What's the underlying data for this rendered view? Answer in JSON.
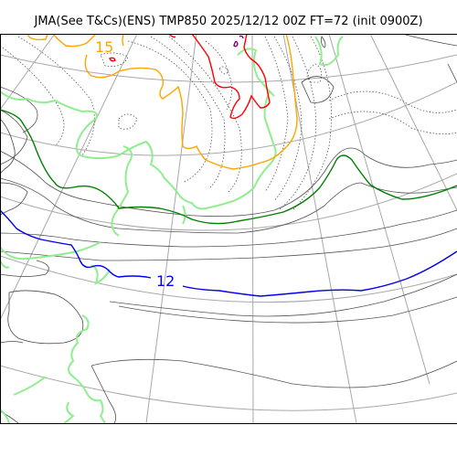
{
  "title": "JMA(See T&Cs)(ENS) TMP850 2025/12/12 00Z FT=72 (init 0900Z)",
  "contour_labels": {
    "blue_12": "12",
    "orange_15": "15"
  },
  "colors": {
    "coastline": "#4a4a4a",
    "grid": "#a8a8a8",
    "contour_solid": "#555555",
    "contour_dotted": "#555555",
    "isotherm_12": "#0000ee",
    "isotherm_green": "#008000",
    "isotherm_light_green": "#90ee90",
    "isotherm_orange": "#ffa500",
    "isotherm_red": "#ff0000",
    "isotherm_purple": "#800080"
  }
}
